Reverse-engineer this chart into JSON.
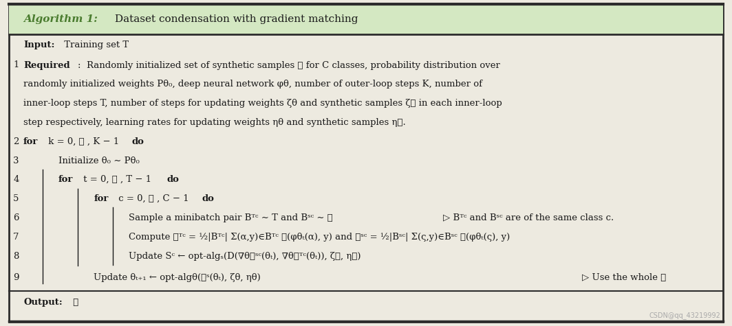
{
  "figsize": [
    10.64,
    4.75
  ],
  "dpi": 100,
  "bg_color": "#edeae0",
  "border_color": "#2c2c2c",
  "header_bg": "#d4e8c2",
  "header_text_bold": "Algorithm 1:",
  "header_text_normal": " Dataset condensation with gradient matching",
  "header_bold_color": "#4a7c2f",
  "watermark": "CSDN@qq_43219992"
}
